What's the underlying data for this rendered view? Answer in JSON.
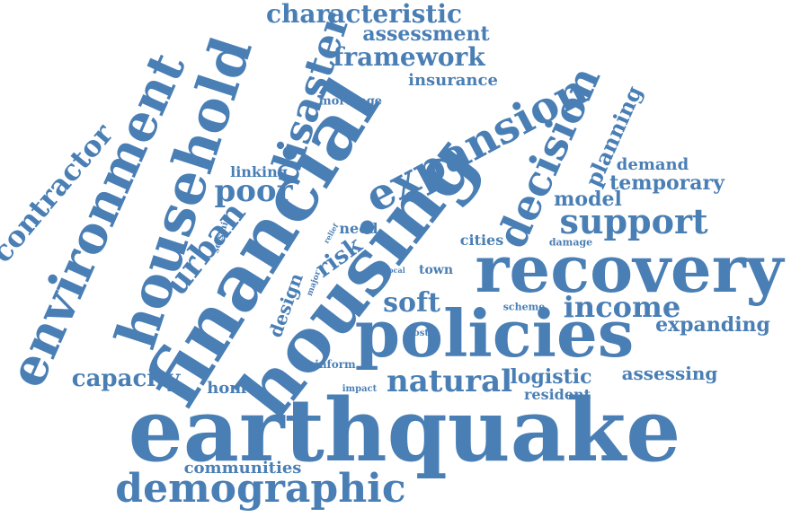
{
  "word_cloud": {
    "color": "#4a7fb5",
    "background": "#ffffff",
    "words": {
      "earthquake": "earthquake",
      "housing": "housing",
      "financial": "financial",
      "recovery": "recovery",
      "policies": "policies",
      "household": "household",
      "environment": "environment",
      "expansion": "expansion",
      "demographic": "demographic",
      "disaster": "disaster",
      "decision": "decision",
      "characteristic": "characteristic",
      "framework": "framework",
      "assessment": "assessment",
      "insurance": "insurance",
      "mortgage": "mortgage",
      "contractor": "contractor",
      "poor": "poor",
      "urban": "urban",
      "linking": "linking",
      "seismic": "seismic",
      "support": "support",
      "income": "income",
      "expanding": "expanding",
      "planning": "planning",
      "demand": "demand",
      "temporary": "temporary",
      "model": "model",
      "soft": "soft",
      "natural": "natural",
      "capacity": "capacity",
      "home": "home",
      "logistic": "logistic",
      "assessing": "assessing",
      "resident": "resident",
      "communities": "communities",
      "cities": "cities",
      "damage": "damage",
      "need": "need",
      "risk": "risk",
      "design": "design",
      "major": "major",
      "relief": "relief",
      "local": "local",
      "town": "town",
      "post": "post",
      "inform": "inform",
      "impact": "impact",
      "scheme": "scheme"
    }
  }
}
